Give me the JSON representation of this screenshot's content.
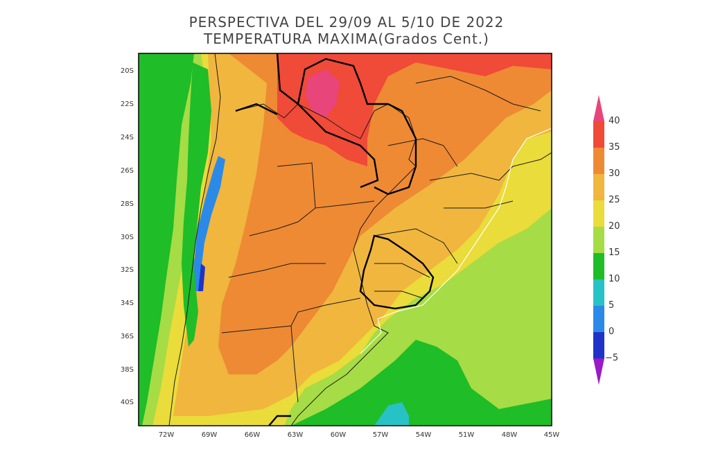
{
  "header": {
    "title_line1": "PERSPECTIVA DEL 29/09 AL 5/10 DE 2022",
    "title_line2": "TEMPERATURA MAXIMA(Grados Cent.)"
  },
  "map": {
    "lat_ticks": [
      "20S",
      "22S",
      "24S",
      "26S",
      "28S",
      "30S",
      "32S",
      "34S",
      "36S",
      "38S",
      "40S"
    ],
    "lon_ticks": [
      "72W",
      "69W",
      "66W",
      "63W",
      "60W",
      "57W",
      "54W",
      "51W",
      "48W",
      "45W"
    ]
  },
  "colorbar": {
    "labels": [
      "40",
      "35",
      "30",
      "25",
      "20",
      "15",
      "10",
      "5",
      "0",
      "−5"
    ],
    "colors": [
      "#e8457a",
      "#f04a38",
      "#ee8a33",
      "#f0b63e",
      "#eadc3a",
      "#a6dc45",
      "#1fbd28",
      "#27c2c6",
      "#2b8ae8",
      "#2033c8",
      "#9a1ac8"
    ]
  }
}
